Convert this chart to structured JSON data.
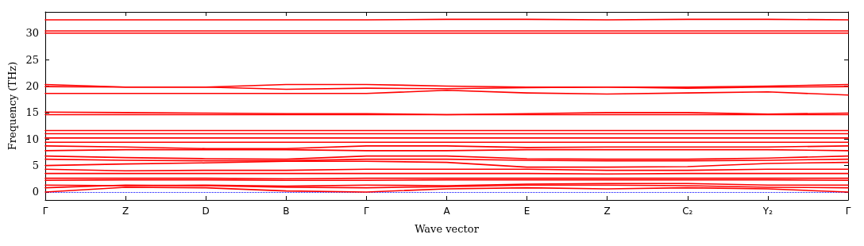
{
  "chart_data": {
    "type": "line",
    "xlabel": "Wave vector",
    "ylabel": "Frequency (THz)",
    "categories": [
      "Γ",
      "Z",
      "D",
      "B",
      "Γ",
      "A",
      "E",
      "Z",
      "C₂",
      "Y₂",
      "Γ"
    ],
    "ylim": [
      -1.5,
      34
    ],
    "yticks": [
      0,
      5,
      10,
      15,
      20,
      25,
      30
    ],
    "ref_lines": [
      {
        "axis": "y",
        "value": 0,
        "color": "#0000ff",
        "line_style": "dotted"
      }
    ],
    "series": [
      {
        "color": "#ff0000",
        "values": [
          32.5,
          32.5,
          32.5,
          32.5,
          32.5,
          32.6,
          32.6,
          32.5,
          32.6,
          32.6,
          32.5
        ]
      },
      {
        "color": "#ff0000",
        "values": [
          30.4,
          30.4,
          30.4,
          30.4,
          30.4,
          30.4,
          30.4,
          30.4,
          30.4,
          30.4,
          30.4
        ]
      },
      {
        "color": "#ff0000",
        "values": [
          30.0,
          30.0,
          30.0,
          30.0,
          30.0,
          30.0,
          30.0,
          30.0,
          30.0,
          30.0,
          30.0
        ]
      },
      {
        "color": "#ff0000",
        "values": [
          20.3,
          19.8,
          19.8,
          20.3,
          20.3,
          20.0,
          19.8,
          19.8,
          19.8,
          20.0,
          20.3
        ]
      },
      {
        "color": "#ff0000",
        "values": [
          19.9,
          19.8,
          19.8,
          19.4,
          19.6,
          19.5,
          19.7,
          19.8,
          19.6,
          19.8,
          19.9
        ]
      },
      {
        "color": "#ff0000",
        "values": [
          18.6,
          18.6,
          18.6,
          18.6,
          18.6,
          19.2,
          18.7,
          18.5,
          18.7,
          18.9,
          18.3
        ]
      },
      {
        "color": "#ff0000",
        "values": [
          15.1,
          15.0,
          14.9,
          14.8,
          14.8,
          14.6,
          14.8,
          15.0,
          15.0,
          14.7,
          14.9
        ]
      },
      {
        "color": "#ff0000",
        "values": [
          14.6,
          14.6,
          14.6,
          14.6,
          14.6,
          14.6,
          14.6,
          14.6,
          14.6,
          14.6,
          14.6
        ]
      },
      {
        "color": "#ff0000",
        "values": [
          11.6,
          11.6,
          11.6,
          11.6,
          11.6,
          11.6,
          11.6,
          11.6,
          11.6,
          11.6,
          11.6
        ]
      },
      {
        "color": "#ff0000",
        "values": [
          11.0,
          11.0,
          11.0,
          11.0,
          11.0,
          11.0,
          11.0,
          11.0,
          11.0,
          11.0,
          11.0
        ]
      },
      {
        "color": "#ff0000",
        "values": [
          10.2,
          10.2,
          10.2,
          10.2,
          10.2,
          10.2,
          10.2,
          10.2,
          10.2,
          10.2,
          10.2
        ]
      },
      {
        "color": "#ff0000",
        "values": [
          9.4,
          9.4,
          9.4,
          9.4,
          9.4,
          9.4,
          9.4,
          9.4,
          9.4,
          9.4,
          9.4
        ]
      },
      {
        "color": "#ff0000",
        "values": [
          8.7,
          8.5,
          8.2,
          8.2,
          8.7,
          8.7,
          8.4,
          8.5,
          8.5,
          8.5,
          8.7
        ]
      },
      {
        "color": "#ff0000",
        "values": [
          7.8,
          8.0,
          8.0,
          8.0,
          7.8,
          7.8,
          8.0,
          8.0,
          8.0,
          8.0,
          7.8
        ]
      },
      {
        "color": "#ff0000",
        "values": [
          6.8,
          6.5,
          6.3,
          6.2,
          6.8,
          6.8,
          6.3,
          6.2,
          6.2,
          6.4,
          6.8
        ]
      },
      {
        "color": "#ff0000",
        "values": [
          6.2,
          6.0,
          5.9,
          5.9,
          6.2,
          6.2,
          6.0,
          5.9,
          5.9,
          6.0,
          6.2
        ]
      },
      {
        "color": "#ff0000",
        "values": [
          5.0,
          5.3,
          5.5,
          5.8,
          5.8,
          5.6,
          4.7,
          4.7,
          4.8,
          5.4,
          5.6
        ]
      },
      {
        "color": "#ff0000",
        "values": [
          4.3,
          4.0,
          4.1,
          4.1,
          4.3,
          4.3,
          4.3,
          4.1,
          4.1,
          4.3,
          4.3
        ]
      },
      {
        "color": "#ff0000",
        "values": [
          3.5,
          3.5,
          3.5,
          3.5,
          3.5,
          3.5,
          3.5,
          3.4,
          3.5,
          3.5,
          3.5
        ]
      },
      {
        "color": "#ff0000",
        "values": [
          2.6,
          2.6,
          2.6,
          2.5,
          2.6,
          2.6,
          2.6,
          2.6,
          2.6,
          2.6,
          2.6
        ]
      },
      {
        "color": "#ff0000",
        "values": [
          2.2,
          2.3,
          2.3,
          2.2,
          2.2,
          2.3,
          2.3,
          2.3,
          2.3,
          2.3,
          2.2
        ]
      },
      {
        "color": "#ff0000",
        "values": [
          1.3,
          1.2,
          1.3,
          1.1,
          1.3,
          1.2,
          1.5,
          1.6,
          1.6,
          1.3,
          1.3
        ]
      },
      {
        "color": "#ff0000",
        "values": [
          0.8,
          1.3,
          1.2,
          0.9,
          0.8,
          1.0,
          1.3,
          1.3,
          1.2,
          0.9,
          0.8
        ]
      },
      {
        "color": "#ff0000",
        "values": [
          0,
          0.9,
          0.8,
          0.2,
          0,
          0.6,
          0.8,
          0.6,
          0.8,
          0.6,
          0
        ]
      }
    ]
  }
}
